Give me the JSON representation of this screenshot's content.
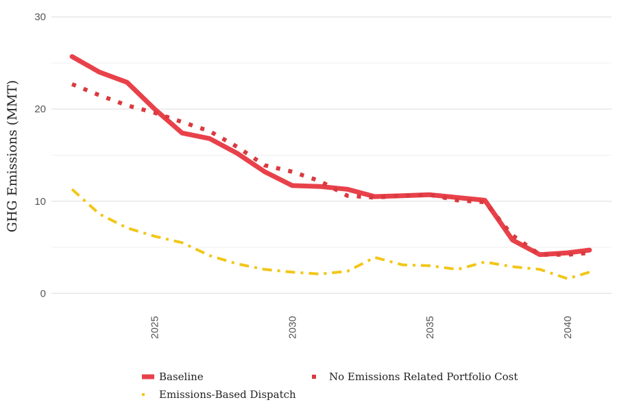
{
  "chart_data": {
    "type": "line",
    "title": "",
    "xlabel": "",
    "ylabel": "GHG Emissions (MMT)",
    "xlim": [
      2021.25,
      2041.6
    ],
    "ylim": [
      -0.5,
      30.5
    ],
    "x_ticks": [
      2025,
      2030,
      2035,
      2040
    ],
    "y_ticks": [
      0,
      10,
      20,
      30
    ],
    "grid": true,
    "legend_position": "bottom",
    "x": [
      2022,
      2023,
      2024,
      2025,
      2026,
      2027,
      2028,
      2029,
      2030,
      2031,
      2032,
      2033,
      2034,
      2035,
      2036,
      2037,
      2038,
      2039,
      2040,
      2040.8
    ],
    "series": [
      {
        "name": "Baseline",
        "color": "#e8414a",
        "style": "solid",
        "values": [
          25.7,
          24.0,
          22.9,
          20.0,
          17.4,
          16.8,
          15.2,
          13.2,
          11.7,
          11.6,
          11.3,
          10.5,
          10.6,
          10.7,
          10.4,
          10.1,
          5.8,
          4.2,
          4.4,
          4.7
        ]
      },
      {
        "name": "No Emissions Related Portfolio Cost",
        "color": "#d93a3f",
        "style": "dotted",
        "values": [
          22.7,
          21.5,
          20.4,
          19.6,
          18.6,
          17.6,
          15.9,
          13.9,
          13.2,
          12.2,
          10.6,
          10.4,
          10.6,
          10.7,
          10.1,
          9.9,
          6.3,
          4.2,
          4.2,
          4.4
        ]
      },
      {
        "name": "Emissions-Based Dispatch",
        "color": "#f2c618",
        "style": "dashdot",
        "values": [
          11.3,
          8.6,
          7.1,
          6.2,
          5.5,
          4.1,
          3.2,
          2.6,
          2.3,
          2.1,
          2.4,
          3.9,
          3.1,
          3.0,
          2.6,
          3.4,
          2.9,
          2.6,
          1.6,
          2.3
        ]
      }
    ]
  }
}
